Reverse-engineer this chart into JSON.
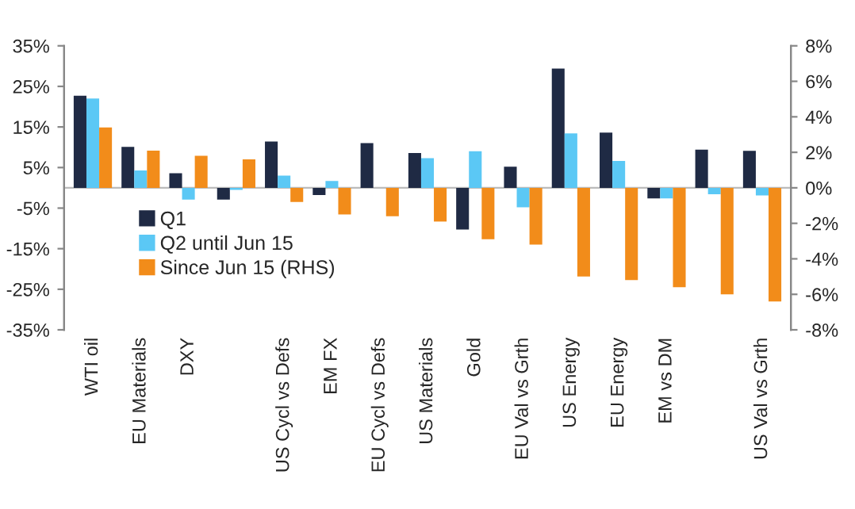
{
  "chart_data": {
    "type": "bar",
    "categories": [
      "WTI oil",
      "EU Materials",
      "DXY",
      null,
      "US Cycl vs Defs",
      "EM FX",
      "EU Cycl vs Defs",
      "US Materials",
      "Gold",
      "EU Val vs Grth",
      "US Energy",
      "EU Energy",
      "EM vs DM",
      null,
      "US Val vs Grth"
    ],
    "series": [
      {
        "name": "Q1",
        "color": "#1f2a44",
        "values": [
          22.7,
          10.1,
          3.6,
          -2.9,
          11.4,
          -1.8,
          11.0,
          8.6,
          -10.3,
          5.2,
          29.4,
          13.6,
          -2.6,
          9.4,
          9.1
        ]
      },
      {
        "name": "Q2 until Jun 15",
        "color": "#5bc8f5",
        "values": [
          22.0,
          4.3,
          -2.9,
          -0.5,
          3.0,
          1.7,
          0,
          7.3,
          9.0,
          -4.8,
          13.4,
          6.6,
          -2.6,
          -1.6,
          -1.9
        ]
      },
      {
        "name": "Since Jun 15 (RHS)",
        "color": "#f28c1a",
        "axis": "y2",
        "values": [
          3.4,
          2.1,
          1.8,
          1.6,
          -0.8,
          -1.5,
          -1.6,
          -1.9,
          -2.9,
          -3.2,
          -5.0,
          -5.2,
          -5.6,
          -6.0,
          -6.4
        ]
      }
    ],
    "ylim": [
      -35,
      35
    ],
    "yticks": [
      {
        "value": -35,
        "label": "-35%"
      },
      {
        "value": -25,
        "label": "-25%"
      },
      {
        "value": -15,
        "label": "-15%"
      },
      {
        "value": -5,
        "label": "-5%"
      },
      {
        "value": 5,
        "label": "5%"
      },
      {
        "value": 15,
        "label": "15%"
      },
      {
        "value": 25,
        "label": "25%"
      },
      {
        "value": 35,
        "label": "35%"
      }
    ],
    "y2lim": [
      -8,
      8
    ],
    "y2ticks": [
      {
        "value": -8,
        "label": "-8%"
      },
      {
        "value": -6,
        "label": "-6%"
      },
      {
        "value": -4,
        "label": "-4%"
      },
      {
        "value": -2,
        "label": "-2%"
      },
      {
        "value": 0,
        "label": "0%"
      },
      {
        "value": 2,
        "label": "2%"
      },
      {
        "value": 4,
        "label": "4%"
      },
      {
        "value": 6,
        "label": "6%"
      },
      {
        "value": 8,
        "label": "8%"
      }
    ],
    "ref_lines": [
      {
        "axis": "y",
        "value": 0,
        "color": "#bbbbbb"
      }
    ],
    "grid": false,
    "legend": "left"
  }
}
